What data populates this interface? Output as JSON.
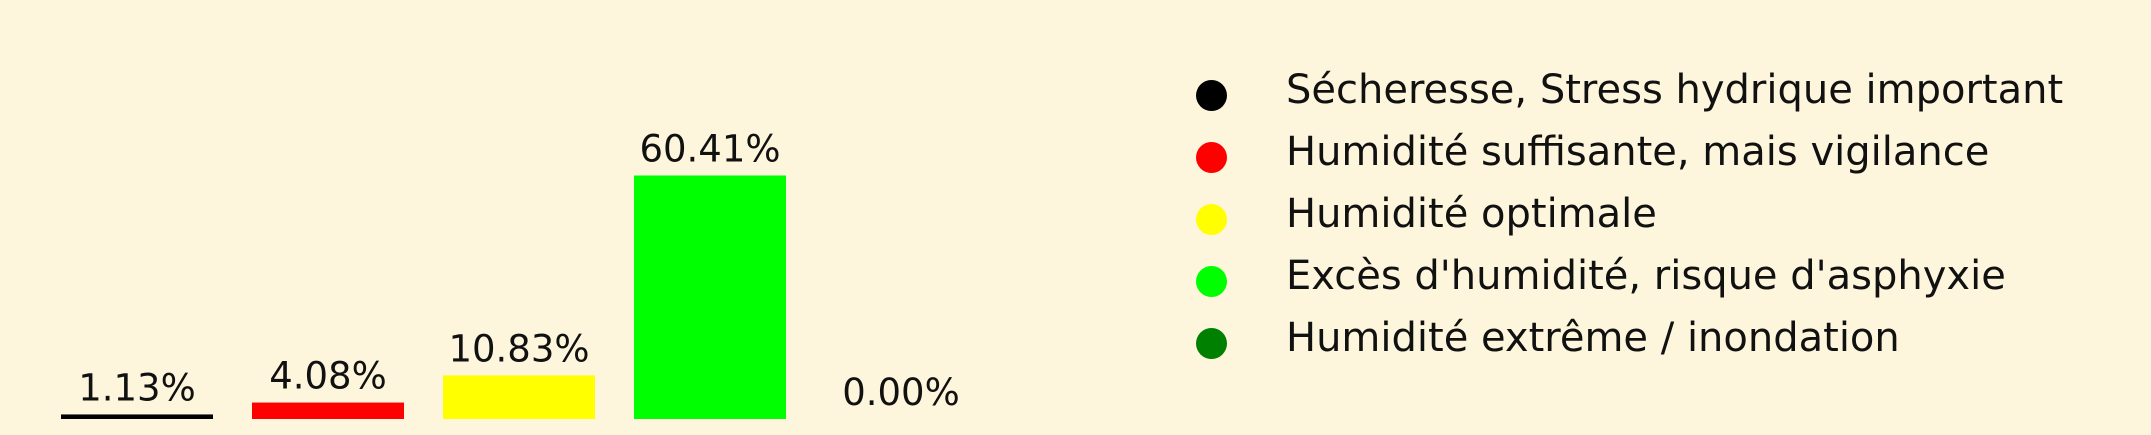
{
  "chart_data": {
    "type": "bar",
    "categories": [
      "Sécheresse, Stress hydrique important",
      "Humidité suffisante, mais vigilance",
      "Humidité optimale",
      "Excès d'humidité, risque d'asphyxie",
      "Humidité extrême / inondation"
    ],
    "values": [
      1.13,
      4.08,
      10.83,
      60.41,
      0.0
    ],
    "labels": [
      "1.13%",
      "4.08%",
      "10.83%",
      "60.41%",
      "0.00%"
    ],
    "colors": [
      "#000000",
      "#ff0000",
      "#ffff00",
      "#00ff00",
      "#008000"
    ],
    "title": "",
    "xlabel": "",
    "ylabel": "",
    "ylim": [
      0,
      65
    ],
    "legend_position": "right",
    "grid": false
  },
  "legend": {
    "items": [
      {
        "label": "Sécheresse, Stress hydrique important",
        "color": "#000000"
      },
      {
        "label": "Humidité suffisante, mais vigilance",
        "color": "#ff0000"
      },
      {
        "label": "Humidité optimale",
        "color": "#ffff00"
      },
      {
        "label": "Excès d'humidité, risque d'asphyxie",
        "color": "#00ff00"
      },
      {
        "label": "Humidité extrême / inondation",
        "color": "#008000"
      }
    ]
  }
}
